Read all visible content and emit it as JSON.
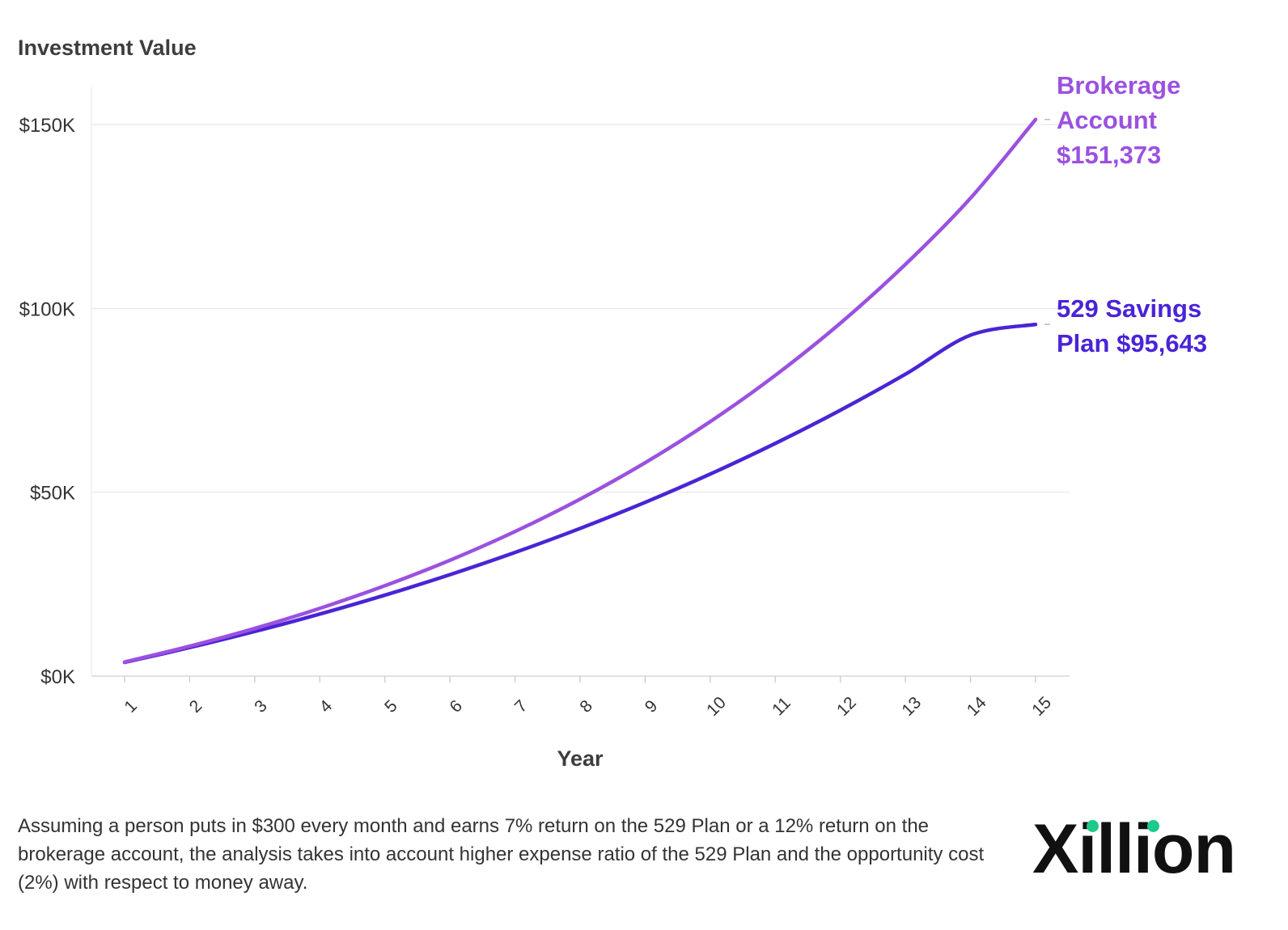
{
  "chart_data": {
    "type": "line",
    "title": "",
    "ylabel": "Investment Value",
    "xlabel": "Year",
    "x": [
      1,
      2,
      3,
      4,
      5,
      6,
      7,
      8,
      9,
      10,
      11,
      12,
      13,
      14,
      15
    ],
    "ylim": [
      0,
      160000
    ],
    "yticks": [
      0,
      50000,
      100000,
      150000
    ],
    "ytick_labels": [
      "$0K",
      "$50K",
      "$100K",
      "$150K"
    ],
    "grid": true,
    "legend": "direct labels at right end of lines",
    "series": [
      {
        "name": "Brokerage Account",
        "end_label": [
          "Brokerage",
          "Account",
          "$151,373"
        ],
        "color": "#9b51e0",
        "values": [
          3815,
          8114,
          12958,
          18417,
          24569,
          31500,
          39311,
          48113,
          58030,
          69204,
          81794,
          95981,
          111967,
          129980,
          151373
        ]
      },
      {
        "name": "529 Savings Plan",
        "end_label": [
          "529 Savings",
          "Plan $95,643"
        ],
        "color": "#4a24d6",
        "values": [
          3721,
          7755,
          12127,
          16867,
          22005,
          27574,
          33611,
          40155,
          47248,
          54937,
          63272,
          72306,
          82100,
          92716,
          95643
        ]
      }
    ]
  },
  "caption": "Assuming a person puts in $300 every month and earns 7% return on the 529 Plan or a 12% return on the brokerage account, the analysis takes into account higher expense ratio of the 529 Plan and the opportunity cost (2%) with respect to money away.",
  "logo": {
    "text": "Xillion",
    "dot_color": "#1ec98b"
  }
}
